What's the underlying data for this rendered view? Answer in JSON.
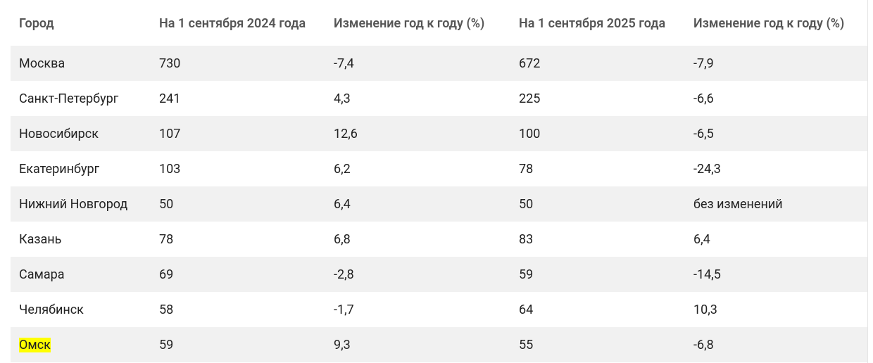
{
  "table": {
    "headers": [
      "Город",
      "На 1 сентября 2024 года",
      "Изменение год к году (%)",
      "На 1 сентября 2025 года",
      "Изменение год к году (%)"
    ],
    "rows": [
      [
        "Москва",
        "730",
        "-7,4",
        "672",
        "-7,9"
      ],
      [
        "Санкт-Петербург",
        "241",
        "4,3",
        "225",
        "-6,6"
      ],
      [
        "Новосибирск",
        "107",
        "12,6",
        "100",
        "-6,5"
      ],
      [
        "Екатеринбург",
        "103",
        "6,2",
        "78",
        "-24,3"
      ],
      [
        "Нижний Новгород",
        "50",
        "6,4",
        "50",
        "без изменений"
      ],
      [
        "Казань",
        "78",
        "6,8",
        "83",
        "6,4"
      ],
      [
        "Самара",
        "69",
        "-2,8",
        "59",
        "-14,5"
      ],
      [
        "Челябинск",
        "58",
        "-1,7",
        "64",
        "10,3"
      ],
      [
        "Омск",
        "59",
        "9,3",
        "55",
        "-6,8"
      ]
    ],
    "highlighted_row": 8
  }
}
